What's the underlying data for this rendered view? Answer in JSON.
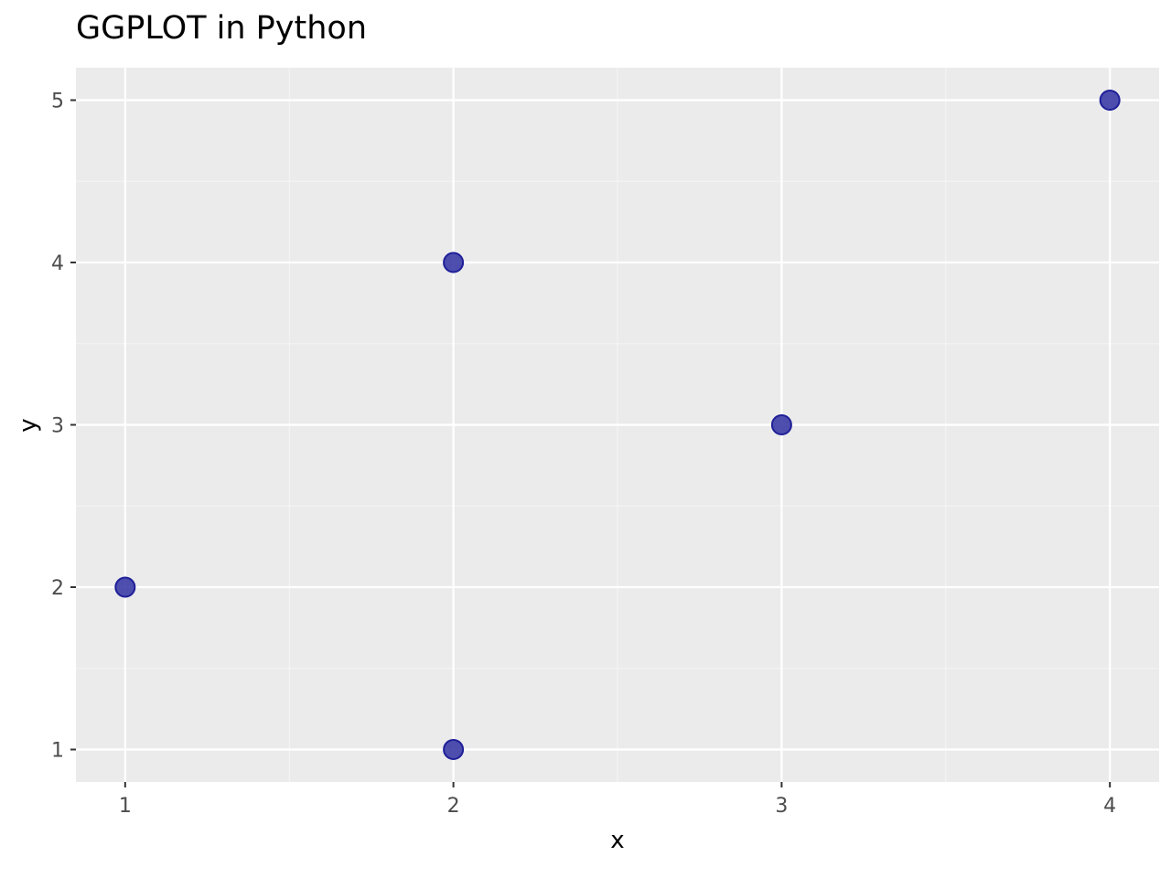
{
  "chart_data": {
    "type": "scatter",
    "title": "GGPLOT in Python",
    "xlabel": "x",
    "ylabel": "y",
    "x": [
      1,
      2,
      2,
      3,
      4
    ],
    "y": [
      2,
      4,
      1,
      3,
      5
    ],
    "xlim": [
      0.85,
      4.15
    ],
    "ylim": [
      0.8,
      5.2
    ],
    "x_ticks": [
      1,
      2,
      3,
      4
    ],
    "y_ticks": [
      1,
      2,
      3,
      4,
      5
    ],
    "x_minor_ticks": [
      1.5,
      2.5,
      3.5
    ],
    "y_minor_ticks": [
      1.5,
      2.5,
      3.5,
      4.5
    ],
    "grid": true,
    "colors": {
      "point_fill": "#3c3ca6",
      "point_stroke": "#1f1f99",
      "panel_background": "#ebebeb",
      "grid_major": "#ffffff",
      "grid_minor": "#f5f5f5"
    }
  }
}
